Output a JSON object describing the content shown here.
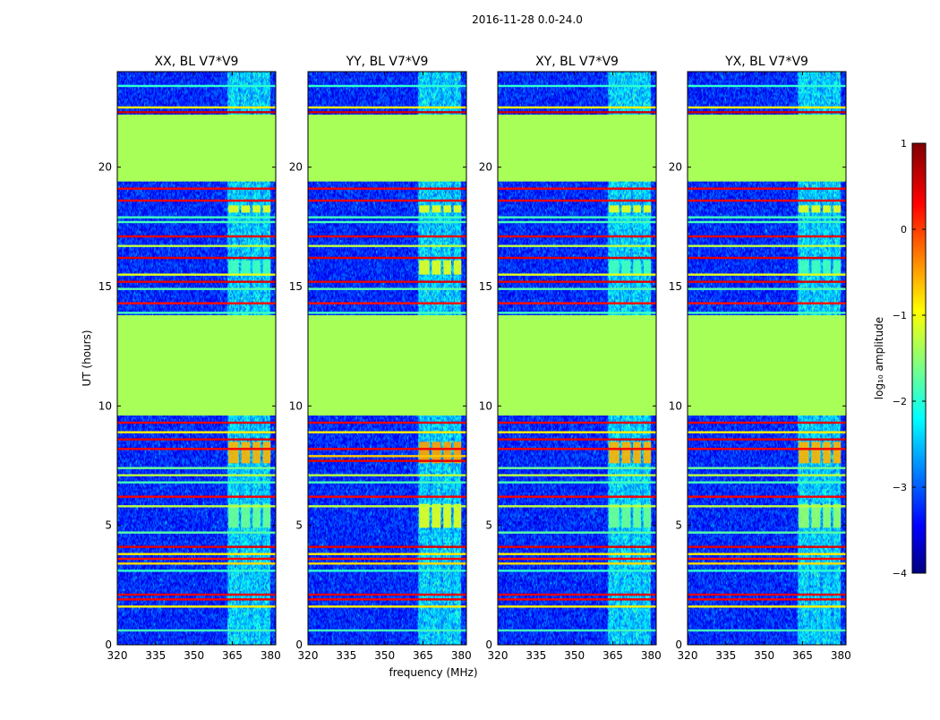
{
  "figure": {
    "suptitle": "2016-11-28 0.0-24.0",
    "ylabel": "UT (hours)",
    "xlabel": "frequency (MHz)",
    "colorbar_label": "log₁₀ amplitude",
    "colorbar_ticks": [
      1,
      0,
      -1,
      -2,
      -3,
      -4
    ],
    "colorbar_tick_labels": [
      "1",
      "0",
      "−1",
      "−2",
      "−3",
      "−4"
    ],
    "colorbar_range": [
      -4,
      1
    ],
    "colormap": "jet"
  },
  "chart_data": [
    {
      "type": "heatmap",
      "title": "XX, BL V7*V9",
      "xlabel": "frequency (MHz)",
      "ylabel": "UT (hours)",
      "xlim": [
        320,
        382
      ],
      "ylim": [
        0,
        24
      ],
      "xticks": [
        320,
        335,
        350,
        365,
        380
      ],
      "yticks": [
        0,
        5,
        10,
        15,
        20
      ],
      "background_level": -3.2,
      "flagged_blocks": [
        {
          "y_start": 9.6,
          "y_end": 13.8,
          "level": -1.3
        },
        {
          "y_start": 19.4,
          "y_end": 22.2,
          "level": -1.3
        }
      ],
      "rfi_band_mhz": [
        363,
        380
      ],
      "rfi_sub_bands_mhz": [
        [
          363.5,
          367.5
        ],
        [
          368.5,
          372
        ],
        [
          373,
          376
        ],
        [
          377,
          380
        ]
      ],
      "rfi_bursts": [
        {
          "y_start": 7.6,
          "y_end": 8.5,
          "level": -0.5
        },
        {
          "y_start": 4.9,
          "y_end": 5.9,
          "level": -1.6
        },
        {
          "y_start": 15.5,
          "y_end": 16.1,
          "level": -1.8
        },
        {
          "y_start": 18.1,
          "y_end": 18.4,
          "level": -1.0
        }
      ],
      "horizontal_lines": [
        {
          "y": 0.6,
          "level": -1.8
        },
        {
          "y": 1.6,
          "level": -0.8
        },
        {
          "y": 1.9,
          "level": 0.4
        },
        {
          "y": 2.1,
          "level": 0.5
        },
        {
          "y": 3.1,
          "level": -1.9
        },
        {
          "y": 3.4,
          "level": -0.7
        },
        {
          "y": 3.6,
          "level": 0.3
        },
        {
          "y": 3.8,
          "level": -0.8
        },
        {
          "y": 4.1,
          "level": 0.5
        },
        {
          "y": 4.7,
          "level": -1.7
        },
        {
          "y": 5.8,
          "level": -1.2
        },
        {
          "y": 6.2,
          "level": 0.4
        },
        {
          "y": 6.8,
          "level": -1.8
        },
        {
          "y": 7.1,
          "level": -1.2
        },
        {
          "y": 7.4,
          "level": -1.6
        },
        {
          "y": 8.2,
          "level": 0.4
        },
        {
          "y": 8.6,
          "level": 0.5
        },
        {
          "y": 8.9,
          "level": -0.8
        },
        {
          "y": 9.3,
          "level": 0.5
        },
        {
          "y": 13.9,
          "level": -1.8
        },
        {
          "y": 14.3,
          "level": 0.3
        },
        {
          "y": 14.9,
          "level": -1.7
        },
        {
          "y": 15.2,
          "level": 0.5
        },
        {
          "y": 15.5,
          "level": -1.0
        },
        {
          "y": 16.2,
          "level": 0.5
        },
        {
          "y": 16.7,
          "level": -1.2
        },
        {
          "y": 17.1,
          "level": 0.5
        },
        {
          "y": 17.7,
          "level": -1.8
        },
        {
          "y": 17.9,
          "level": -1.8
        },
        {
          "y": 18.6,
          "level": 0.4
        },
        {
          "y": 19.1,
          "level": 0.4
        },
        {
          "y": 22.3,
          "level": 0.6
        },
        {
          "y": 22.5,
          "level": -0.8
        },
        {
          "y": 23.4,
          "level": -1.9
        }
      ]
    },
    {
      "type": "heatmap",
      "title": "YY, BL V7*V9",
      "xlabel": "frequency (MHz)",
      "ylabel": "UT (hours)",
      "xlim": [
        320,
        382
      ],
      "ylim": [
        0,
        24
      ],
      "xticks": [
        320,
        335,
        350,
        365,
        380
      ],
      "yticks": [
        0,
        5,
        10,
        15,
        20
      ],
      "background_level": -3.2,
      "flagged_blocks": [
        {
          "y_start": 9.6,
          "y_end": 13.8,
          "level": -1.3
        },
        {
          "y_start": 19.4,
          "y_end": 22.2,
          "level": -1.3
        }
      ],
      "rfi_band_mhz": [
        363,
        380
      ],
      "rfi_sub_bands_mhz": [
        [
          363.5,
          367.5
        ],
        [
          368.5,
          372
        ],
        [
          373,
          376
        ],
        [
          377,
          380
        ]
      ],
      "rfi_bursts": [
        {
          "y_start": 7.6,
          "y_end": 8.5,
          "level": -0.4
        },
        {
          "y_start": 4.9,
          "y_end": 5.9,
          "level": -1.0
        },
        {
          "y_start": 15.5,
          "y_end": 16.1,
          "level": -1.0
        },
        {
          "y_start": 18.1,
          "y_end": 18.4,
          "level": -1.0
        }
      ],
      "horizontal_lines": [
        {
          "y": 0.6,
          "level": -1.8
        },
        {
          "y": 1.6,
          "level": -0.8
        },
        {
          "y": 1.9,
          "level": 0.4
        },
        {
          "y": 2.1,
          "level": 0.5
        },
        {
          "y": 3.1,
          "level": -1.9
        },
        {
          "y": 3.4,
          "level": -0.7
        },
        {
          "y": 3.6,
          "level": 0.3
        },
        {
          "y": 3.8,
          "level": -0.8
        },
        {
          "y": 4.1,
          "level": 0.5
        },
        {
          "y": 5.8,
          "level": -1.2
        },
        {
          "y": 6.2,
          "level": 0.4
        },
        {
          "y": 6.8,
          "level": -1.8
        },
        {
          "y": 7.1,
          "level": -1.2
        },
        {
          "y": 7.7,
          "level": 0.5
        },
        {
          "y": 7.9,
          "level": -0.6
        },
        {
          "y": 8.2,
          "level": 0.4
        },
        {
          "y": 8.9,
          "level": -0.8
        },
        {
          "y": 9.3,
          "level": 0.5
        },
        {
          "y": 13.9,
          "level": -1.8
        },
        {
          "y": 14.3,
          "level": 0.3
        },
        {
          "y": 14.9,
          "level": -1.7
        },
        {
          "y": 15.2,
          "level": 0.5
        },
        {
          "y": 16.2,
          "level": 0.5
        },
        {
          "y": 16.7,
          "level": -1.2
        },
        {
          "y": 17.1,
          "level": 0.5
        },
        {
          "y": 17.7,
          "level": -1.8
        },
        {
          "y": 17.9,
          "level": -1.8
        },
        {
          "y": 18.6,
          "level": 0.4
        },
        {
          "y": 19.1,
          "level": 0.4
        },
        {
          "y": 22.3,
          "level": 0.6
        },
        {
          "y": 22.5,
          "level": -0.8
        },
        {
          "y": 23.4,
          "level": -1.9
        }
      ]
    },
    {
      "type": "heatmap",
      "title": "XY, BL V7*V9",
      "xlabel": "frequency (MHz)",
      "ylabel": "UT (hours)",
      "xlim": [
        320,
        382
      ],
      "ylim": [
        0,
        24
      ],
      "xticks": [
        320,
        335,
        350,
        365,
        380
      ],
      "yticks": [
        0,
        5,
        10,
        15,
        20
      ],
      "background_level": -3.2,
      "flagged_blocks": [
        {
          "y_start": 9.6,
          "y_end": 13.8,
          "level": -1.3
        },
        {
          "y_start": 19.4,
          "y_end": 22.2,
          "level": -1.3
        }
      ],
      "rfi_band_mhz": [
        363,
        380
      ],
      "rfi_sub_bands_mhz": [
        [
          363.5,
          367.5
        ],
        [
          368.5,
          372
        ],
        [
          373,
          376
        ],
        [
          377,
          380
        ]
      ],
      "rfi_bursts": [
        {
          "y_start": 7.6,
          "y_end": 8.5,
          "level": -0.5
        },
        {
          "y_start": 4.9,
          "y_end": 5.9,
          "level": -1.6
        },
        {
          "y_start": 15.5,
          "y_end": 16.1,
          "level": -1.8
        },
        {
          "y_start": 18.1,
          "y_end": 18.4,
          "level": -1.0
        }
      ],
      "horizontal_lines": [
        {
          "y": 0.6,
          "level": -1.8
        },
        {
          "y": 1.6,
          "level": -0.8
        },
        {
          "y": 1.9,
          "level": 0.4
        },
        {
          "y": 2.1,
          "level": 0.5
        },
        {
          "y": 3.1,
          "level": -1.9
        },
        {
          "y": 3.4,
          "level": -0.7
        },
        {
          "y": 3.6,
          "level": 0.3
        },
        {
          "y": 3.8,
          "level": -0.8
        },
        {
          "y": 4.1,
          "level": 0.5
        },
        {
          "y": 4.7,
          "level": -1.7
        },
        {
          "y": 5.8,
          "level": -1.2
        },
        {
          "y": 6.2,
          "level": 0.4
        },
        {
          "y": 6.8,
          "level": -1.8
        },
        {
          "y": 7.1,
          "level": -1.2
        },
        {
          "y": 7.4,
          "level": -1.6
        },
        {
          "y": 8.2,
          "level": 0.4
        },
        {
          "y": 8.6,
          "level": 0.5
        },
        {
          "y": 8.9,
          "level": -0.8
        },
        {
          "y": 9.3,
          "level": 0.5
        },
        {
          "y": 13.9,
          "level": -1.8
        },
        {
          "y": 14.3,
          "level": 0.3
        },
        {
          "y": 14.9,
          "level": -1.7
        },
        {
          "y": 15.2,
          "level": 0.5
        },
        {
          "y": 15.5,
          "level": -1.0
        },
        {
          "y": 16.2,
          "level": 0.5
        },
        {
          "y": 16.7,
          "level": -1.2
        },
        {
          "y": 17.1,
          "level": 0.5
        },
        {
          "y": 17.7,
          "level": -1.8
        },
        {
          "y": 17.9,
          "level": -1.8
        },
        {
          "y": 18.6,
          "level": 0.4
        },
        {
          "y": 19.1,
          "level": 0.4
        },
        {
          "y": 22.3,
          "level": 0.6
        },
        {
          "y": 22.5,
          "level": -0.8
        },
        {
          "y": 23.4,
          "level": -1.9
        }
      ]
    },
    {
      "type": "heatmap",
      "title": "YX, BL V7*V9",
      "xlabel": "frequency (MHz)",
      "ylabel": "UT (hours)",
      "xlim": [
        320,
        382
      ],
      "ylim": [
        0,
        24
      ],
      "xticks": [
        320,
        335,
        350,
        365,
        380
      ],
      "yticks": [
        0,
        5,
        10,
        15,
        20
      ],
      "background_level": -3.2,
      "flagged_blocks": [
        {
          "y_start": 9.6,
          "y_end": 13.8,
          "level": -1.3
        },
        {
          "y_start": 19.4,
          "y_end": 22.2,
          "level": -1.3
        }
      ],
      "rfi_band_mhz": [
        363,
        380
      ],
      "rfi_sub_bands_mhz": [
        [
          363.5,
          367.5
        ],
        [
          368.5,
          372
        ],
        [
          373,
          376
        ],
        [
          377,
          380
        ]
      ],
      "rfi_bursts": [
        {
          "y_start": 7.6,
          "y_end": 8.5,
          "level": -0.5
        },
        {
          "y_start": 4.9,
          "y_end": 5.9,
          "level": -1.4
        },
        {
          "y_start": 15.5,
          "y_end": 16.1,
          "level": -1.8
        },
        {
          "y_start": 18.1,
          "y_end": 18.4,
          "level": -1.0
        }
      ],
      "horizontal_lines": [
        {
          "y": 0.6,
          "level": -1.8
        },
        {
          "y": 1.6,
          "level": -0.8
        },
        {
          "y": 1.9,
          "level": 0.4
        },
        {
          "y": 2.1,
          "level": 0.5
        },
        {
          "y": 3.1,
          "level": -1.9
        },
        {
          "y": 3.4,
          "level": -0.7
        },
        {
          "y": 3.6,
          "level": 0.3
        },
        {
          "y": 3.8,
          "level": -0.8
        },
        {
          "y": 4.1,
          "level": 0.5
        },
        {
          "y": 4.7,
          "level": -1.7
        },
        {
          "y": 5.8,
          "level": -1.2
        },
        {
          "y": 6.2,
          "level": 0.4
        },
        {
          "y": 6.8,
          "level": -1.8
        },
        {
          "y": 7.1,
          "level": -1.2
        },
        {
          "y": 7.4,
          "level": -1.6
        },
        {
          "y": 8.2,
          "level": 0.4
        },
        {
          "y": 8.6,
          "level": 0.5
        },
        {
          "y": 8.9,
          "level": -0.8
        },
        {
          "y": 9.3,
          "level": 0.5
        },
        {
          "y": 13.9,
          "level": -1.8
        },
        {
          "y": 14.3,
          "level": 0.3
        },
        {
          "y": 14.9,
          "level": -1.7
        },
        {
          "y": 15.2,
          "level": 0.5
        },
        {
          "y": 15.5,
          "level": -1.0
        },
        {
          "y": 16.2,
          "level": 0.5
        },
        {
          "y": 16.7,
          "level": -1.2
        },
        {
          "y": 17.1,
          "level": 0.5
        },
        {
          "y": 17.7,
          "level": -1.8
        },
        {
          "y": 17.9,
          "level": -1.8
        },
        {
          "y": 18.6,
          "level": 0.4
        },
        {
          "y": 19.1,
          "level": 0.4
        },
        {
          "y": 22.3,
          "level": 0.6
        },
        {
          "y": 22.5,
          "level": -0.8
        },
        {
          "y": 23.4,
          "level": -1.9
        }
      ]
    }
  ]
}
